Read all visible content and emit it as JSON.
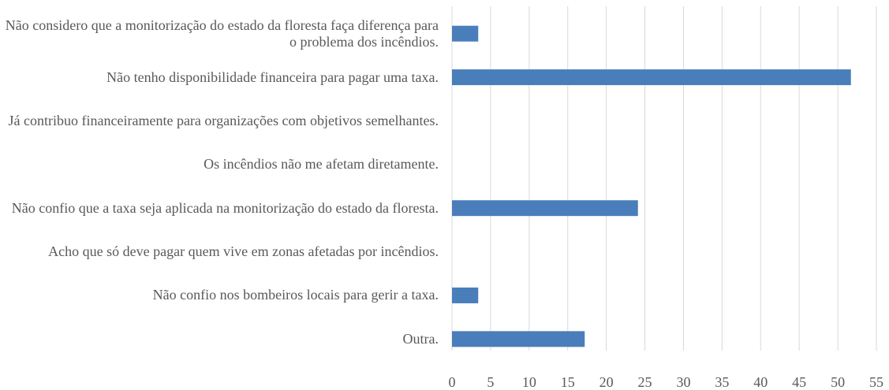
{
  "chart_data": {
    "type": "barh",
    "categories": [
      "Não considero que a monitorização do estado da floresta faça diferença para o problema dos incêndios.",
      "Não tenho disponibilidade financeira para pagar uma taxa.",
      "Já contribuo financeiramente para organizações com objetivos semelhantes.",
      "Os incêndios não me afetam diretamente.",
      "Não confio que a taxa seja aplicada na monitorização do estado da floresta.",
      "Acho que só deve pagar quem vive em zonas afetadas por incêndios.",
      "Não confio nos bombeiros locais para gerir a taxa.",
      "Outra."
    ],
    "values": [
      3.4,
      51.7,
      0,
      0,
      24.1,
      0,
      3.4,
      17.2
    ],
    "color": "#4a7ebb",
    "xlim": [
      0,
      55
    ],
    "xticks": [
      0,
      5,
      10,
      15,
      20,
      25,
      30,
      35,
      40,
      45,
      50,
      55
    ],
    "grid": true
  }
}
